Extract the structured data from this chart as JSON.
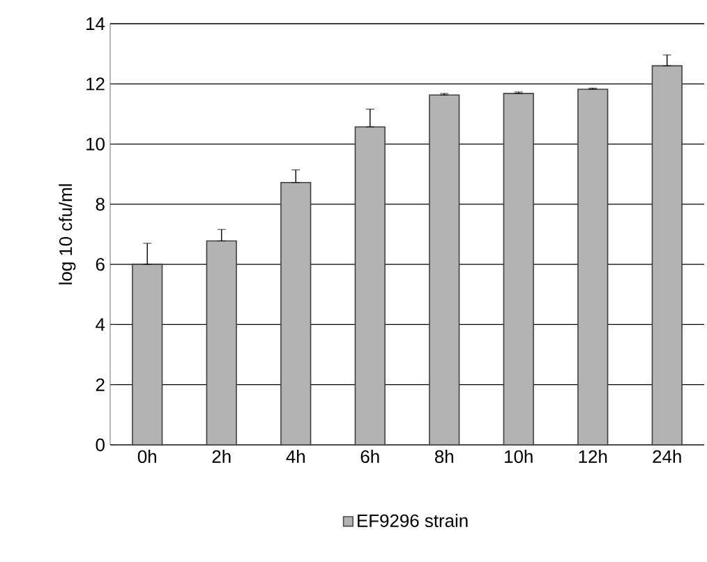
{
  "chart_data": {
    "type": "bar",
    "ylabel": "log 10 cfu/ml",
    "categories": [
      "0h",
      "2h",
      "4h",
      "6h",
      "8h",
      "10h",
      "12h",
      "24h"
    ],
    "series": [
      {
        "name": "EF9296 strain",
        "color": "#b3b3b3",
        "values": [
          6.0,
          6.78,
          8.72,
          10.57,
          11.63,
          11.68,
          11.82,
          12.6
        ],
        "errors": [
          [
            6.0,
            6.7
          ],
          [
            6.78,
            7.16
          ],
          [
            8.72,
            9.14
          ],
          [
            10.57,
            11.16
          ],
          [
            11.63,
            11.68
          ],
          [
            11.68,
            11.73
          ],
          [
            11.82,
            11.86
          ],
          [
            12.6,
            12.96
          ]
        ]
      }
    ],
    "ylim": [
      0,
      14
    ],
    "yticks": [
      0,
      2,
      4,
      6,
      8,
      10,
      12,
      14
    ],
    "grid": "y",
    "legend": "bottom"
  }
}
